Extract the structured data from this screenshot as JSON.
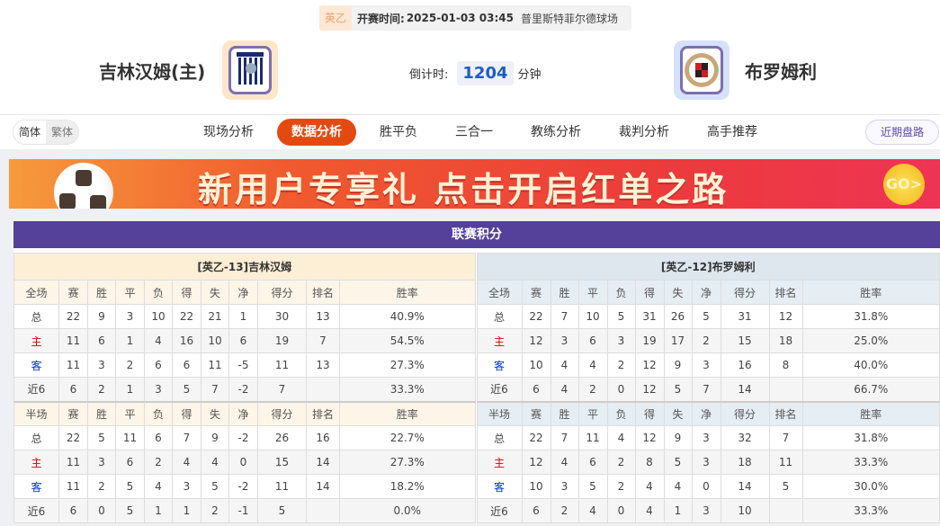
{
  "match": {
    "league": "英乙",
    "time_label": "开赛时间:",
    "time": "2025-01-03 03:45",
    "venue": "普里斯特菲尔德球场",
    "home": "吉林汉姆(主)",
    "away": "布罗姆利",
    "countdown_label": "倒计时:",
    "countdown": "1204",
    "countdown_unit": "分钟"
  },
  "lang": [
    "简体",
    "繁体"
  ],
  "tabs": [
    "现场分析",
    "数据分析",
    "胜平负",
    "三合一",
    "教练分析",
    "裁判分析",
    "高手推荐"
  ],
  "active_tab": "数据分析",
  "recent_button": "近期盘路",
  "banner": {
    "text": "新用户专享礼  点击开启红单之路",
    "go": "GO>"
  },
  "standings": {
    "title": "联赛积分",
    "columns_full": [
      "全场",
      "赛",
      "胜",
      "平",
      "负",
      "得",
      "失",
      "净",
      "得分",
      "排名",
      "胜率"
    ],
    "columns_half": [
      "半场",
      "赛",
      "胜",
      "平",
      "负",
      "得",
      "失",
      "净",
      "得分",
      "排名",
      "胜率"
    ],
    "home": {
      "header": "[英乙-13]吉林汉姆",
      "full": [
        [
          "总",
          "22",
          "9",
          "3",
          "10",
          "22",
          "21",
          "1",
          "30",
          "13",
          "40.9%"
        ],
        [
          "主",
          "11",
          "6",
          "1",
          "4",
          "16",
          "10",
          "6",
          "19",
          "7",
          "54.5%"
        ],
        [
          "客",
          "11",
          "3",
          "2",
          "6",
          "6",
          "11",
          "-5",
          "11",
          "13",
          "27.3%"
        ],
        [
          "近6",
          "6",
          "2",
          "1",
          "3",
          "5",
          "7",
          "-2",
          "7",
          "",
          "33.3%"
        ]
      ],
      "half": [
        [
          "总",
          "22",
          "5",
          "11",
          "6",
          "7",
          "9",
          "-2",
          "26",
          "16",
          "22.7%"
        ],
        [
          "主",
          "11",
          "3",
          "6",
          "2",
          "4",
          "4",
          "0",
          "15",
          "14",
          "27.3%"
        ],
        [
          "客",
          "11",
          "2",
          "5",
          "4",
          "3",
          "5",
          "-2",
          "11",
          "14",
          "18.2%"
        ],
        [
          "近6",
          "6",
          "0",
          "5",
          "1",
          "1",
          "2",
          "-1",
          "5",
          "",
          "0.0%"
        ]
      ]
    },
    "away": {
      "header": "[英乙-12]布罗姆利",
      "full": [
        [
          "总",
          "22",
          "7",
          "10",
          "5",
          "31",
          "26",
          "5",
          "31",
          "12",
          "31.8%"
        ],
        [
          "主",
          "12",
          "3",
          "6",
          "3",
          "19",
          "17",
          "2",
          "15",
          "18",
          "25.0%"
        ],
        [
          "客",
          "10",
          "4",
          "4",
          "2",
          "12",
          "9",
          "3",
          "16",
          "8",
          "40.0%"
        ],
        [
          "近6",
          "6",
          "4",
          "2",
          "0",
          "12",
          "5",
          "7",
          "14",
          "",
          "66.7%"
        ]
      ],
      "half": [
        [
          "总",
          "22",
          "7",
          "11",
          "4",
          "12",
          "9",
          "3",
          "32",
          "7",
          "31.8%"
        ],
        [
          "主",
          "12",
          "4",
          "6",
          "2",
          "8",
          "5",
          "3",
          "18",
          "11",
          "33.3%"
        ],
        [
          "客",
          "10",
          "3",
          "5",
          "2",
          "4",
          "4",
          "0",
          "14",
          "5",
          "30.0%"
        ],
        [
          "近6",
          "6",
          "2",
          "4",
          "0",
          "4",
          "1",
          "3",
          "10",
          "",
          "33.3%"
        ]
      ]
    }
  },
  "colors": {
    "accent": "#e24a12",
    "title_bar": "#55409a",
    "home_row": "#dd0000",
    "away_row": "#0033cc",
    "countdown": "#1e5bc6"
  }
}
